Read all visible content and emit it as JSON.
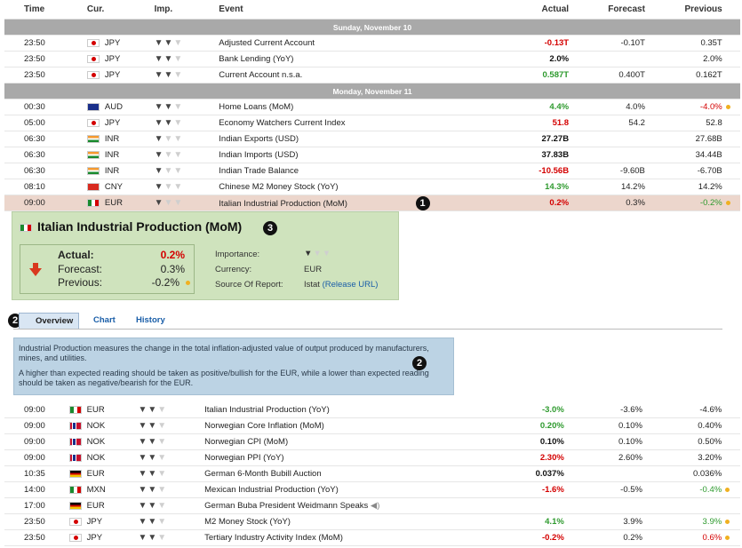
{
  "headers": {
    "time": "Time",
    "cur": "Cur.",
    "imp": "Imp.",
    "event": "Event",
    "actual": "Actual",
    "forecast": "Forecast",
    "previous": "Previous"
  },
  "day1": "Sunday, November 10",
  "day2": "Monday, November 11",
  "rows_top": [
    {
      "time": "23:50",
      "flag": "jp",
      "cur": "JPY",
      "imp": 2,
      "event": "Adjusted Current Account",
      "actual": "-0.13T",
      "act_cls": "neg",
      "forecast": "-0.10T",
      "previous": "0.35T",
      "prev_cls": "",
      "dot": false
    },
    {
      "time": "23:50",
      "flag": "jp",
      "cur": "JPY",
      "imp": 2,
      "event": "Bank Lending (YoY)",
      "actual": "2.0%",
      "act_cls": "plain-b",
      "forecast": "",
      "previous": "2.0%",
      "prev_cls": "",
      "dot": false
    },
    {
      "time": "23:50",
      "flag": "jp",
      "cur": "JPY",
      "imp": 2,
      "event": "Current Account n.s.a.",
      "actual": "0.587T",
      "act_cls": "pos",
      "forecast": "0.400T",
      "previous": "0.162T",
      "prev_cls": "",
      "dot": false
    }
  ],
  "rows_mid": [
    {
      "time": "00:30",
      "flag": "au",
      "cur": "AUD",
      "imp": 2,
      "event": "Home Loans (MoM)",
      "actual": "4.4%",
      "act_cls": "pos",
      "forecast": "4.0%",
      "previous": "-4.0%",
      "prev_cls": "neg-n",
      "dot": true
    },
    {
      "time": "05:00",
      "flag": "jp",
      "cur": "JPY",
      "imp": 2,
      "event": "Economy Watchers Current Index",
      "actual": "51.8",
      "act_cls": "neg",
      "forecast": "54.2",
      "previous": "52.8",
      "prev_cls": "",
      "dot": false
    },
    {
      "time": "06:30",
      "flag": "in",
      "cur": "INR",
      "imp": 1,
      "event": "Indian Exports (USD)",
      "actual": "27.27B",
      "act_cls": "plain-b",
      "forecast": "",
      "previous": "27.68B",
      "prev_cls": "",
      "dot": false
    },
    {
      "time": "06:30",
      "flag": "in",
      "cur": "INR",
      "imp": 1,
      "event": "Indian Imports (USD)",
      "actual": "37.83B",
      "act_cls": "plain-b",
      "forecast": "",
      "previous": "34.44B",
      "prev_cls": "",
      "dot": false
    },
    {
      "time": "06:30",
      "flag": "in",
      "cur": "INR",
      "imp": 1,
      "event": "Indian Trade Balance",
      "actual": "-10.56B",
      "act_cls": "neg",
      "forecast": "-9.60B",
      "previous": "-6.70B",
      "prev_cls": "",
      "dot": false
    },
    {
      "time": "08:10",
      "flag": "cn",
      "cur": "CNY",
      "imp": 1,
      "event": "Chinese M2 Money Stock (YoY)",
      "actual": "14.3%",
      "act_cls": "pos",
      "forecast": "14.2%",
      "previous": "14.2%",
      "prev_cls": "",
      "dot": false
    },
    {
      "time": "09:00",
      "flag": "it",
      "cur": "EUR",
      "imp": 1,
      "event": "Italian Industrial Production (MoM)",
      "actual": "0.2%",
      "act_cls": "neg-n",
      "forecast": "0.3%",
      "previous": "-0.2%",
      "prev_cls": "pos-n",
      "dot": true,
      "selected": true
    }
  ],
  "badges": {
    "one": "1",
    "two": "2",
    "three": "3"
  },
  "detail": {
    "title": "Italian Industrial Production (MoM)",
    "actual_label": "Actual:",
    "actual": "0.2%",
    "forecast_label": "Forecast:",
    "forecast": "0.3%",
    "previous_label": "Previous:",
    "previous": "-0.2%",
    "importance_label": "Importance:",
    "currency_label": "Currency:",
    "currency": "EUR",
    "source_label": "Source Of Report:",
    "source": "Istat",
    "source_link": "(Release URL)"
  },
  "tabs": {
    "overview": "Overview",
    "chart": "Chart",
    "history": "History"
  },
  "description": {
    "p1": "Industrial Production measures the change in the total inflation-adjusted value of output produced by manufacturers, mines, and utilities.",
    "p2": "A higher than expected reading should be taken as positive/bullish for the EUR, while a lower than expected reading should be taken as negative/bearish for the EUR."
  },
  "rows_bottom": [
    {
      "time": "09:00",
      "flag": "it",
      "cur": "EUR",
      "imp": 2,
      "event": "Italian Industrial Production (YoY)",
      "actual": "-3.0%",
      "act_cls": "pos",
      "forecast": "-3.6%",
      "previous": "-4.6%",
      "prev_cls": "",
      "dot": false
    },
    {
      "time": "09:00",
      "flag": "no",
      "cur": "NOK",
      "imp": 2,
      "event": "Norwegian Core Inflation (MoM)",
      "actual": "0.20%",
      "act_cls": "pos",
      "forecast": "0.10%",
      "previous": "0.40%",
      "prev_cls": "",
      "dot": false
    },
    {
      "time": "09:00",
      "flag": "no",
      "cur": "NOK",
      "imp": 2,
      "event": "Norwegian CPI (MoM)",
      "actual": "0.10%",
      "act_cls": "plain-b",
      "forecast": "0.10%",
      "previous": "0.50%",
      "prev_cls": "",
      "dot": false
    },
    {
      "time": "09:00",
      "flag": "no",
      "cur": "NOK",
      "imp": 2,
      "event": "Norwegian PPI (YoY)",
      "actual": "2.30%",
      "act_cls": "neg",
      "forecast": "2.60%",
      "previous": "3.20%",
      "prev_cls": "",
      "dot": false
    },
    {
      "time": "10:35",
      "flag": "de",
      "cur": "EUR",
      "imp": 2,
      "event": "German 6-Month Bubill Auction",
      "actual": "0.037%",
      "act_cls": "plain-b",
      "forecast": "",
      "previous": "0.036%",
      "prev_cls": "",
      "dot": false
    },
    {
      "time": "14:00",
      "flag": "mx",
      "cur": "MXN",
      "imp": 2,
      "event": "Mexican Industrial Production (YoY)",
      "actual": "-1.6%",
      "act_cls": "neg",
      "forecast": "-0.5%",
      "previous": "-0.4%",
      "prev_cls": "pos-n",
      "dot": true
    },
    {
      "time": "17:00",
      "flag": "de",
      "cur": "EUR",
      "imp": 2,
      "event": "German Buba President Weidmann Speaks",
      "actual": "",
      "act_cls": "",
      "forecast": "",
      "previous": "",
      "prev_cls": "",
      "dot": false,
      "speaker": true
    },
    {
      "time": "23:50",
      "flag": "jp",
      "cur": "JPY",
      "imp": 2,
      "event": "M2 Money Stock (YoY)",
      "actual": "4.1%",
      "act_cls": "pos",
      "forecast": "3.9%",
      "previous": "3.9%",
      "prev_cls": "pos-n",
      "dot": true
    },
    {
      "time": "23:50",
      "flag": "jp",
      "cur": "JPY",
      "imp": 2,
      "event": "Tertiary Industry Activity Index (MoM)",
      "actual": "-0.2%",
      "act_cls": "neg",
      "forecast": "0.2%",
      "previous": "0.6%",
      "prev_cls": "neg-n",
      "dot": true
    }
  ]
}
